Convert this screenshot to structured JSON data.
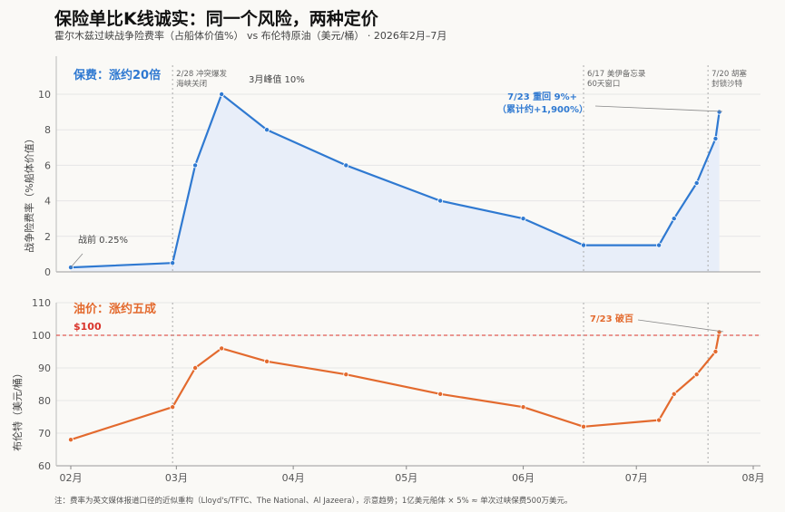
{
  "title": "保险单比K线诚实：同一个风险，两种定价",
  "subtitle": "霍尔木兹过峡战争险费率（占船体价值%） vs 布伦特原油（美元/桶） · 2026年2月–7月",
  "footnote": "注：费率为英文媒体报道口径的近似重构（Lloyd's/TFTC、The National、Al Jazeera），示意趋势；1亿美元船体 × 5% ≈ 单次过峡保费500万美元。",
  "colors": {
    "insurance": "#2f79d1",
    "oil": "#e36a2e",
    "fill": "#e8eef9",
    "redline": "#d9342b"
  },
  "x_ticks": [
    "02月",
    "03月",
    "04月",
    "05月",
    "06月",
    "07月",
    "08月"
  ],
  "chart_data": [
    {
      "type": "area",
      "panel_label": "保费：涨约20倍",
      "ylabel": "战争险费率（%船体价值）",
      "ylim": [
        0,
        10
      ],
      "yticks": [
        "0",
        "2",
        "4",
        "6",
        "8",
        "10"
      ],
      "series": [
        {
          "x": [
            "2026-02-01",
            "2026-02-28",
            "2026-03-06",
            "2026-03-13",
            "2026-03-25",
            "2026-04-15",
            "2026-05-10",
            "2026-06-01",
            "2026-06-17",
            "2026-07-07",
            "2026-07-11",
            "2026-07-17",
            "2026-07-22",
            "2026-07-23"
          ],
          "y": [
            0.25,
            0.5,
            6,
            10,
            8,
            6,
            4,
            3,
            1.5,
            1.5,
            3,
            5,
            7.5,
            9
          ]
        }
      ],
      "annotations": [
        {
          "text": "战前 0.25%"
        },
        {
          "text": "3月峰值 10%"
        },
        {
          "text": "7/23 重回 9%+"
        },
        {
          "text": "（累计约+1,900%）"
        }
      ]
    },
    {
      "type": "line",
      "panel_label": "油价：涨约五成",
      "ylabel": "布伦特（美元/桶）",
      "ylim": [
        60,
        110
      ],
      "yticks": [
        "60",
        "70",
        "80",
        "90",
        "100",
        "110"
      ],
      "reference_line": {
        "value": 100,
        "label": "$100"
      },
      "series": [
        {
          "x": [
            "2026-02-01",
            "2026-02-28",
            "2026-03-06",
            "2026-03-13",
            "2026-03-25",
            "2026-04-15",
            "2026-05-10",
            "2026-06-01",
            "2026-06-17",
            "2026-07-07",
            "2026-07-11",
            "2026-07-17",
            "2026-07-22",
            "2026-07-23"
          ],
          "y": [
            68,
            78,
            90,
            96,
            92,
            88,
            82,
            78,
            72,
            74,
            82,
            88,
            95,
            101
          ]
        }
      ],
      "annotations": [
        {
          "text": "7/23 破百"
        }
      ]
    }
  ],
  "events": [
    {
      "line1": "2/28 冲突爆发",
      "line2": "海峡关闭"
    },
    {
      "line1": "6/17 美伊备忘录",
      "line2": "60天窗口"
    },
    {
      "line1": "7/20 胡塞",
      "line2": "封锁沙特"
    }
  ]
}
